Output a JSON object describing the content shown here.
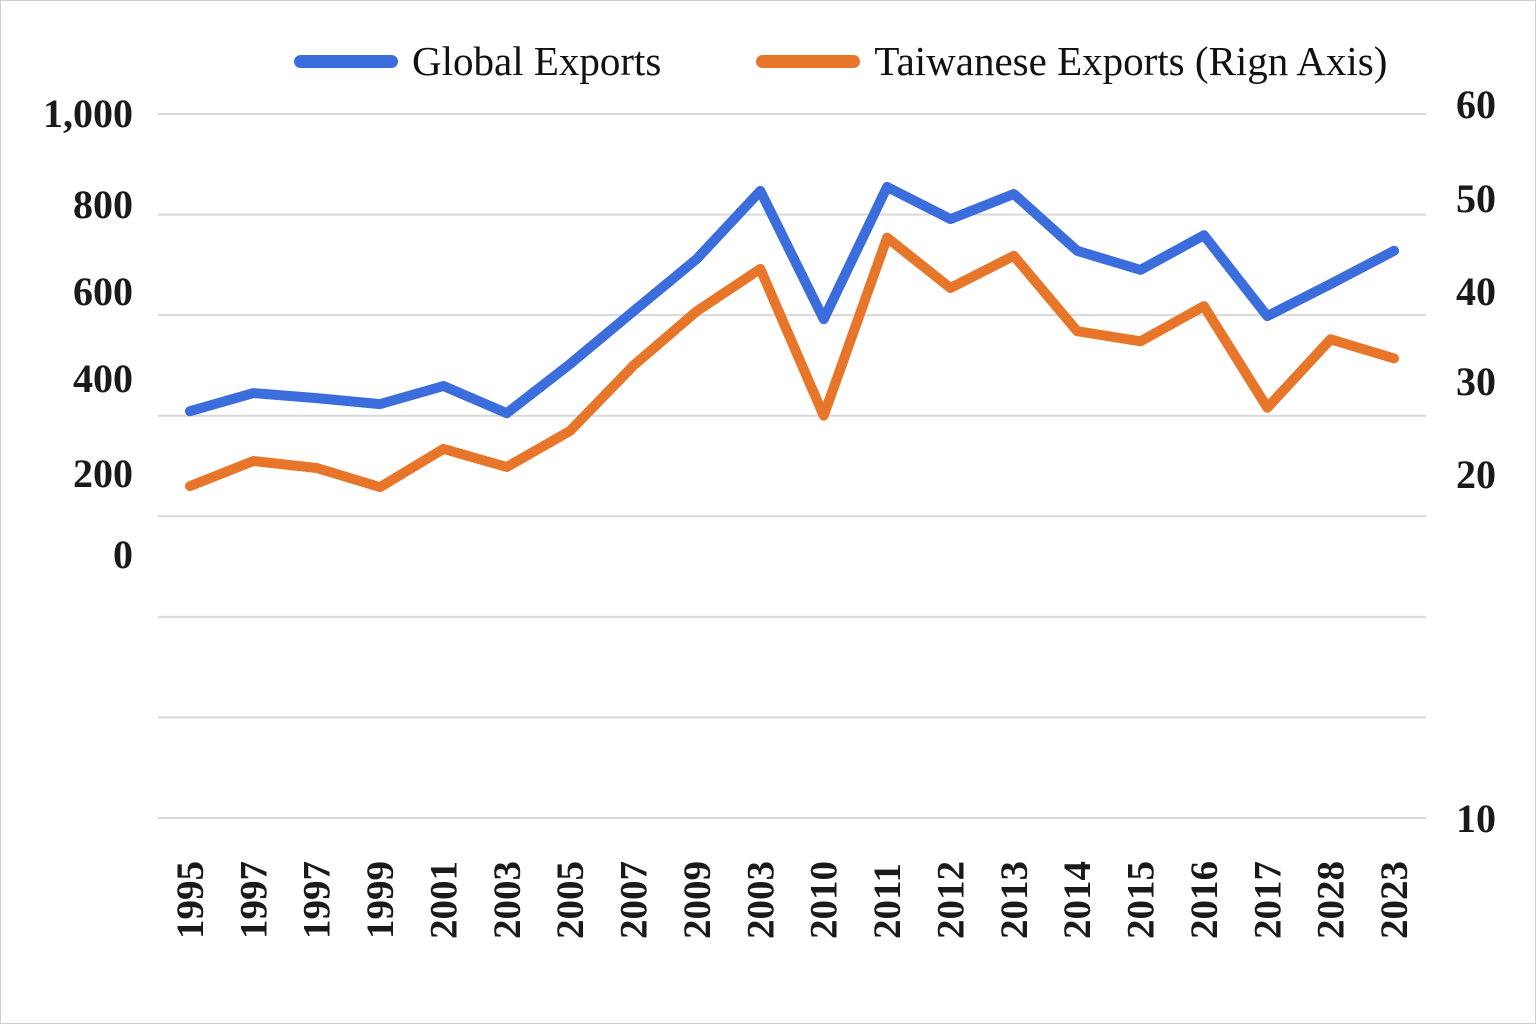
{
  "chart_data": {
    "type": "line",
    "title": "",
    "categories": [
      "1995",
      "1997",
      "1997",
      "1999",
      "2001",
      "2003",
      "2005",
      "2007",
      "2009",
      "2003",
      "2010",
      "2011",
      "2012",
      "2013",
      "2014",
      "2015",
      "2016",
      "2017",
      "2028",
      "2023"
    ],
    "series": [
      {
        "name": "Global Exports",
        "axis": "left",
        "color": "#3b6edc",
        "values": [
          409,
          445,
          435,
          423,
          459,
          405,
          503,
          608,
          712,
          847,
          592,
          855,
          791,
          841,
          728,
          690,
          759,
          598,
          662,
          728
        ]
      },
      {
        "name": "Taiwanese Exports (Rign Axis)",
        "axis": "right",
        "color": "#e8762a",
        "values": [
          23.0,
          25.5,
          24.8,
          22.9,
          26.7,
          24.9,
          28.5,
          35.0,
          40.4,
          44.6,
          30.0,
          47.7,
          42.7,
          45.9,
          38.4,
          37.4,
          40.9,
          30.8,
          37.6,
          35.7
        ]
      }
    ],
    "left_axis": {
      "min": 0,
      "max": 1000,
      "tick_labels": [
        "1,000",
        "800",
        "600",
        "400",
        "200",
        "0"
      ]
    },
    "right_axis": {
      "min": 10,
      "max": 60,
      "tick_labels": [
        "60",
        "50",
        "40",
        "30",
        "20",
        "10"
      ]
    },
    "gridline_count": 8,
    "grid": true,
    "legend_position": "top"
  },
  "legend": {
    "items": [
      {
        "label": "Global Exports",
        "color": "#3b6edc"
      },
      {
        "label": "Taiwanese Exports (Rign Axis)",
        "color": "#e8762a"
      }
    ]
  },
  "colors": {
    "grid": "#d9d9d9",
    "text": "#1a1a1a",
    "blue": "#3b6edc",
    "orange": "#e8762a"
  }
}
